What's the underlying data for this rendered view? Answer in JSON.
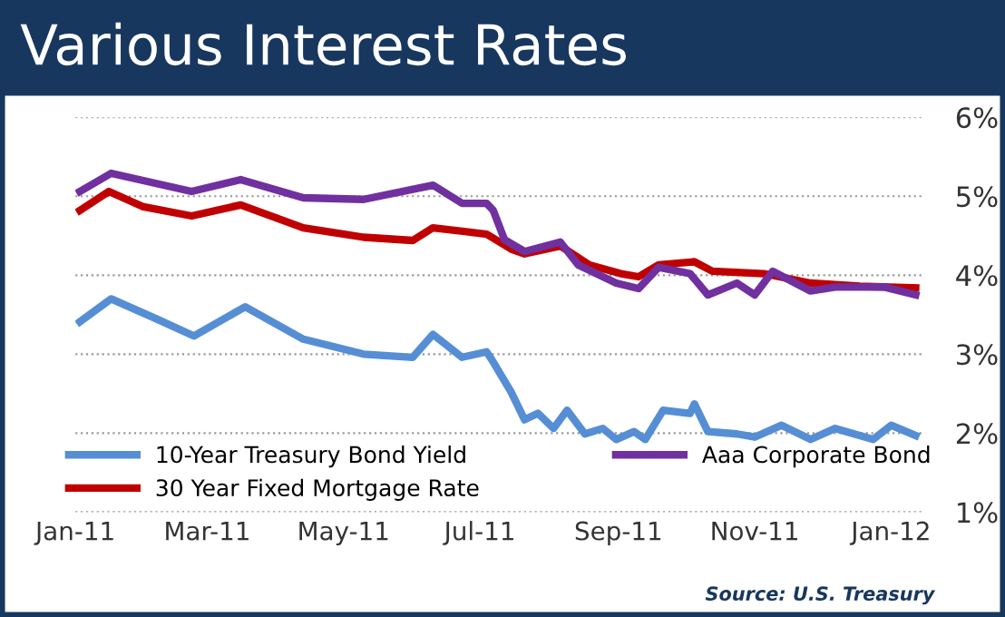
{
  "chart_data": {
    "type": "line",
    "title": "Various Interest Rates",
    "xlim": [
      "2011-01-01",
      "2012-01-16"
    ],
    "ylim": [
      1,
      6
    ],
    "xticks": [
      {
        "value": "2011-01-01",
        "label": "Jan-11"
      },
      {
        "value": "2011-03-01",
        "label": "Mar-11"
      },
      {
        "value": "2011-05-01",
        "label": "May-11"
      },
      {
        "value": "2011-07-01",
        "label": "Jul-11"
      },
      {
        "value": "2011-09-01",
        "label": "Sep-11"
      },
      {
        "value": "2011-11-01",
        "label": "Nov-11"
      },
      {
        "value": "2012-01-01",
        "label": "Jan-12"
      }
    ],
    "yticks": [
      {
        "value": 1,
        "label": "1%"
      },
      {
        "value": 2,
        "label": "2%"
      },
      {
        "value": 3,
        "label": "3%"
      },
      {
        "value": 4,
        "label": "4%"
      },
      {
        "value": 5,
        "label": "5%"
      },
      {
        "value": 6,
        "label": "6%"
      }
    ],
    "grid": "y",
    "legend": "bottom",
    "marker": "none",
    "line_style": "solid",
    "annotations": [
      "Source: U.S. Treasury"
    ],
    "series": [
      {
        "name": "10-Year Treasury Bond Yield",
        "color": "#558ed5",
        "x": [
          "2011-01-03",
          "2011-01-17",
          "2011-02-06",
          "2011-02-23",
          "2011-03-18",
          "2011-04-13",
          "2011-05-10",
          "2011-06-01",
          "2011-06-10",
          "2011-06-23",
          "2011-07-04",
          "2011-07-07",
          "2011-07-15",
          "2011-07-21",
          "2011-07-27",
          "2011-08-03",
          "2011-08-09",
          "2011-08-17",
          "2011-08-25",
          "2011-08-31",
          "2011-09-08",
          "2011-09-13",
          "2011-09-21",
          "2011-10-03",
          "2011-10-05",
          "2011-10-11",
          "2011-10-24",
          "2011-11-01",
          "2011-11-13",
          "2011-11-26",
          "2011-12-07",
          "2011-12-24",
          "2012-01-01",
          "2012-01-12"
        ],
        "values": [
          3.41,
          3.7,
          3.45,
          3.23,
          3.6,
          3.19,
          3.0,
          2.96,
          3.25,
          2.96,
          3.03,
          2.9,
          2.52,
          2.17,
          2.25,
          2.06,
          2.29,
          1.99,
          2.06,
          1.92,
          2.02,
          1.92,
          2.29,
          2.25,
          2.37,
          2.02,
          1.99,
          1.95,
          2.1,
          1.92,
          2.06,
          1.92,
          2.1,
          1.97
        ]
      },
      {
        "name": "30 Year Fixed Mortgage Rate",
        "color": "#c00000",
        "x": [
          "2011-01-03",
          "2011-01-16",
          "2011-01-31",
          "2011-02-22",
          "2011-03-16",
          "2011-04-13",
          "2011-05-10",
          "2011-06-01",
          "2011-06-10",
          "2011-07-04",
          "2011-07-15",
          "2011-07-21",
          "2011-08-06",
          "2011-08-19",
          "2011-09-02",
          "2011-09-10",
          "2011-09-19",
          "2011-10-05",
          "2011-10-13",
          "2011-11-05",
          "2011-11-26",
          "2011-12-18",
          "2012-01-12"
        ],
        "values": [
          4.82,
          5.06,
          4.87,
          4.75,
          4.89,
          4.6,
          4.48,
          4.44,
          4.6,
          4.52,
          4.33,
          4.27,
          4.37,
          4.13,
          4.02,
          3.98,
          4.13,
          4.17,
          4.05,
          4.02,
          3.9,
          3.86,
          3.84
        ]
      },
      {
        "name": "Aaa Corporate Bond",
        "color": "#7030a0",
        "x": [
          "2011-01-03",
          "2011-01-17",
          "2011-02-22",
          "2011-03-16",
          "2011-04-13",
          "2011-05-10",
          "2011-06-10",
          "2011-06-23",
          "2011-07-04",
          "2011-07-07",
          "2011-07-12",
          "2011-07-21",
          "2011-08-06",
          "2011-08-14",
          "2011-08-31",
          "2011-09-10",
          "2011-09-19",
          "2011-10-03",
          "2011-10-11",
          "2011-10-24",
          "2011-11-01",
          "2011-11-09",
          "2011-11-26",
          "2011-12-07",
          "2011-12-29",
          "2012-01-12"
        ],
        "values": [
          5.06,
          5.29,
          5.06,
          5.21,
          4.98,
          4.96,
          5.14,
          4.91,
          4.91,
          4.82,
          4.45,
          4.3,
          4.42,
          4.13,
          3.9,
          3.83,
          4.1,
          4.02,
          3.75,
          3.9,
          3.75,
          4.05,
          3.8,
          3.85,
          3.85,
          3.75
        ]
      }
    ]
  }
}
